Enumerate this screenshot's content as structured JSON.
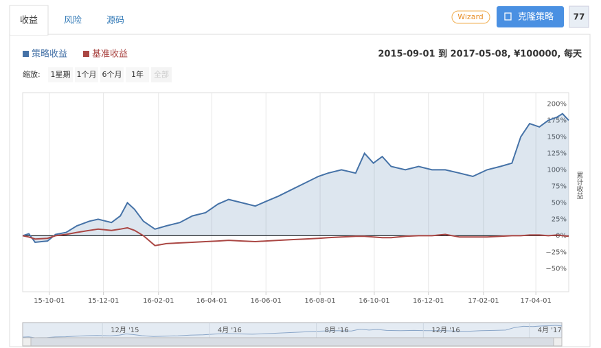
{
  "ui": {
    "tabs": [
      "收益",
      "风险",
      "源码"
    ],
    "wizard": "Wizard",
    "clone": "克隆策略",
    "count": "77",
    "range_text": "2015-09-01 到 2017-05-08, ¥100000, 每天",
    "zoom_label": "缩放:",
    "zoom_buttons": [
      "1星期",
      "1个月",
      "6个月",
      "1年",
      "全部"
    ]
  },
  "chart_data": {
    "type": "line",
    "y_label": "累计收益",
    "area_series": 0,
    "x": [
      "2015-09-01",
      "2015-09-08",
      "2015-09-15",
      "2015-09-29",
      "2015-10-08",
      "2015-10-20",
      "2015-11-01",
      "2015-11-15",
      "2015-11-25",
      "2015-12-10",
      "2015-12-20",
      "2015-12-28",
      "2016-01-05",
      "2016-01-15",
      "2016-01-28",
      "2016-02-10",
      "2016-02-25",
      "2016-03-10",
      "2016-03-25",
      "2016-04-08",
      "2016-04-20",
      "2016-05-05",
      "2016-05-20",
      "2016-06-01",
      "2016-06-15",
      "2016-06-30",
      "2016-07-15",
      "2016-07-30",
      "2016-08-10",
      "2016-08-25",
      "2016-09-10",
      "2016-09-20",
      "2016-09-30",
      "2016-10-10",
      "2016-10-20",
      "2016-11-05",
      "2016-11-20",
      "2016-12-05",
      "2016-12-20",
      "2017-01-05",
      "2017-01-20",
      "2017-02-05",
      "2017-02-20",
      "2017-03-05",
      "2017-03-15",
      "2017-03-25",
      "2017-04-05",
      "2017-04-15",
      "2017-04-25",
      "2017-05-01",
      "2017-05-08"
    ],
    "series": [
      {
        "name": "策略收益",
        "color": "#4572a7",
        "values": [
          0,
          3,
          -10,
          -8,
          2,
          5,
          15,
          22,
          25,
          20,
          30,
          50,
          40,
          22,
          10,
          15,
          20,
          30,
          35,
          48,
          55,
          50,
          45,
          52,
          60,
          70,
          80,
          90,
          95,
          100,
          95,
          125,
          110,
          120,
          105,
          100,
          105,
          100,
          100,
          95,
          90,
          100,
          105,
          110,
          150,
          170,
          165,
          175,
          180,
          185,
          175
        ]
      },
      {
        "name": "基准收益",
        "color": "#aa4643",
        "values": [
          0,
          -2,
          -5,
          -4,
          0,
          2,
          5,
          8,
          10,
          8,
          10,
          12,
          8,
          0,
          -15,
          -12,
          -11,
          -10,
          -9,
          -8,
          -7,
          -8,
          -9,
          -8,
          -7,
          -6,
          -5,
          -4,
          -3,
          -2,
          -1,
          -1,
          -2,
          -3,
          -3,
          -1,
          0,
          0,
          2,
          -2,
          -2,
          -2,
          -1,
          0,
          0,
          1,
          1,
          0,
          1,
          0,
          -1
        ]
      }
    ],
    "xlim": [
      "2015-09-01",
      "2017-05-08"
    ],
    "xticks": [
      {
        "value": "2015-10-01",
        "label": "15-10-01"
      },
      {
        "value": "2015-12-01",
        "label": "15-12-01"
      },
      {
        "value": "2016-02-01",
        "label": "16-02-01"
      },
      {
        "value": "2016-04-01",
        "label": "16-04-01"
      },
      {
        "value": "2016-06-01",
        "label": "16-06-01"
      },
      {
        "value": "2016-08-01",
        "label": "16-08-01"
      },
      {
        "value": "2016-10-01",
        "label": "16-10-01"
      },
      {
        "value": "2016-12-01",
        "label": "16-12-01"
      },
      {
        "value": "2017-02-01",
        "label": "17-02-01"
      },
      {
        "value": "2017-04-01",
        "label": "17-04-01"
      }
    ],
    "ylim": [
      -85,
      217
    ],
    "yticks": [
      {
        "value": -50,
        "label": "−50%"
      },
      {
        "value": -25,
        "label": "−25%"
      },
      {
        "value": 0,
        "label": "0%"
      },
      {
        "value": 25,
        "label": "25%"
      },
      {
        "value": 50,
        "label": "50%"
      },
      {
        "value": 75,
        "label": "75%"
      },
      {
        "value": 100,
        "label": "100%"
      },
      {
        "value": 125,
        "label": "125%"
      },
      {
        "value": 150,
        "label": "150%"
      },
      {
        "value": 175,
        "label": "175%"
      },
      {
        "value": 200,
        "label": "200%"
      }
    ],
    "navigator_ticks": [
      {
        "value": "2015-12-01",
        "label": "12月 '15"
      },
      {
        "value": "2016-04-01",
        "label": "4月 '16"
      },
      {
        "value": "2016-08-01",
        "label": "8月 '16"
      },
      {
        "value": "2016-12-01",
        "label": "12月 '16"
      },
      {
        "value": "2017-04-01",
        "label": "4月 '17"
      }
    ]
  }
}
